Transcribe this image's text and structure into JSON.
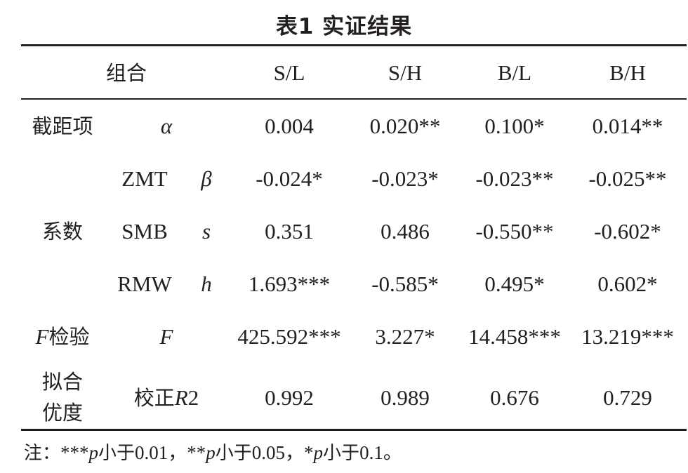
{
  "title": "表1  实证结果",
  "header": {
    "group": "组合",
    "col_sl": "S/L",
    "col_sh": "S/H",
    "col_bl": "B/L",
    "col_bh": "B/H"
  },
  "rows": {
    "intercept": {
      "category": "截距项",
      "symbol": "α",
      "values": [
        "0.004",
        "0.020**",
        "0.100*",
        "0.014**"
      ]
    },
    "coef_group": "系数",
    "zmt": {
      "factor": "ZMT",
      "symbol": "β",
      "values": [
        "-0.024*",
        "-0.023*",
        "-0.023**",
        "-0.025**"
      ]
    },
    "smb": {
      "factor": "SMB",
      "symbol": "s",
      "values": [
        "0.351",
        "0.486",
        "-0.550**",
        "-0.602*"
      ]
    },
    "rmw": {
      "factor": "RMW",
      "symbol": "h",
      "values": [
        "1.693***",
        "-0.585*",
        "0.495*",
        "0.602*"
      ]
    },
    "ftest": {
      "category_italic": "F",
      "category_text": "检验",
      "symbol": "F",
      "values": [
        "425.592***",
        "3.227*",
        "14.458***",
        "13.219***"
      ]
    },
    "fit": {
      "category_line1": "拟合",
      "category_line2": "优度",
      "symbol_text": "校正",
      "symbol_italic": "R",
      "symbol_suffix": "2",
      "values": [
        "0.992",
        "0.989",
        "0.676",
        "0.729"
      ]
    }
  },
  "note": {
    "prefix": "注：",
    "s1": "***",
    "p1": "p",
    "t1": "小于",
    "v1": "0.01，",
    "s2": "**",
    "p2": "p",
    "t2": "小于",
    "v2": "0.05，",
    "s3": "*",
    "p3": "p",
    "t3": "小于",
    "v3": "0.1。"
  }
}
